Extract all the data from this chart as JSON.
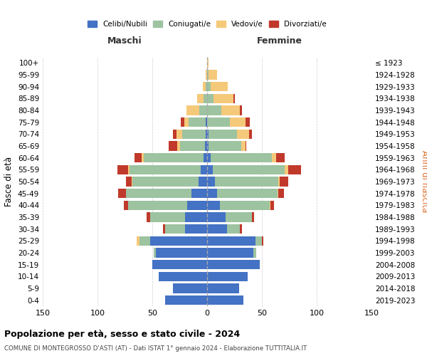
{
  "age_groups": [
    "0-4",
    "5-9",
    "10-14",
    "15-19",
    "20-24",
    "25-29",
    "30-34",
    "35-39",
    "40-44",
    "45-49",
    "50-54",
    "55-59",
    "60-64",
    "65-69",
    "70-74",
    "75-79",
    "80-84",
    "85-89",
    "90-94",
    "95-99",
    "100+"
  ],
  "birth_years": [
    "2019-2023",
    "2014-2018",
    "2009-2013",
    "2004-2008",
    "1999-2003",
    "1994-1998",
    "1989-1993",
    "1984-1988",
    "1979-1983",
    "1974-1978",
    "1969-1973",
    "1964-1968",
    "1959-1963",
    "1954-1958",
    "1949-1953",
    "1944-1948",
    "1939-1943",
    "1934-1938",
    "1929-1933",
    "1924-1928",
    "≤ 1923"
  ],
  "maschi": {
    "celibi": [
      38,
      31,
      44,
      50,
      47,
      52,
      20,
      20,
      18,
      14,
      8,
      6,
      3,
      2,
      1,
      1,
      0,
      0,
      0,
      0,
      0
    ],
    "coniugati": [
      0,
      0,
      0,
      0,
      2,
      10,
      18,
      32,
      54,
      60,
      60,
      65,
      55,
      23,
      22,
      16,
      7,
      3,
      1,
      0,
      0
    ],
    "vedovi": [
      0,
      0,
      0,
      0,
      0,
      2,
      0,
      0,
      0,
      0,
      1,
      1,
      2,
      2,
      5,
      4,
      12,
      6,
      3,
      1,
      0
    ],
    "divorziati": [
      0,
      0,
      0,
      0,
      0,
      0,
      2,
      3,
      4,
      7,
      5,
      10,
      6,
      8,
      3,
      3,
      0,
      0,
      0,
      0,
      0
    ]
  },
  "femmine": {
    "nubili": [
      33,
      29,
      37,
      48,
      42,
      44,
      18,
      17,
      12,
      9,
      7,
      5,
      3,
      1,
      1,
      0,
      0,
      0,
      0,
      0,
      0
    ],
    "coniugate": [
      0,
      0,
      0,
      0,
      3,
      6,
      12,
      24,
      45,
      55,
      58,
      66,
      56,
      30,
      26,
      21,
      13,
      6,
      3,
      1,
      0
    ],
    "vedove": [
      0,
      0,
      0,
      0,
      0,
      0,
      0,
      0,
      1,
      1,
      1,
      3,
      4,
      4,
      11,
      14,
      17,
      18,
      16,
      8,
      1
    ],
    "divorziate": [
      0,
      0,
      0,
      0,
      0,
      1,
      2,
      2,
      3,
      5,
      8,
      12,
      8,
      1,
      3,
      4,
      2,
      1,
      0,
      0,
      0
    ]
  },
  "colors": {
    "celibi": "#4472C4",
    "coniugati": "#9DC3A0",
    "vedovi": "#F5C97A",
    "divorziati": "#C0392B"
  },
  "xlim": [
    -150,
    150
  ],
  "xticks": [
    -150,
    -100,
    -50,
    0,
    50,
    100,
    150
  ],
  "xticklabels": [
    "150",
    "100",
    "50",
    "0",
    "50",
    "100",
    "150"
  ],
  "title": "Popolazione per età, sesso e stato civile - 2024",
  "subtitle": "COMUNE DI MONTEGROSSO D'ASTI (AT) - Dati ISTAT 1° gennaio 2024 - Elaborazione TUTTITALIA.IT",
  "ylabel_left": "Fasce di età",
  "ylabel_right": "Anni di nascita",
  "maschi_label": "Maschi",
  "femmine_label": "Femmine",
  "legend_labels": [
    "Celibi/Nubili",
    "Coniugati/e",
    "Vedovi/e",
    "Divorziati/e"
  ],
  "bg_color": "#FFFFFF",
  "grid_color": "#CCCCCC",
  "bar_height": 0.8
}
